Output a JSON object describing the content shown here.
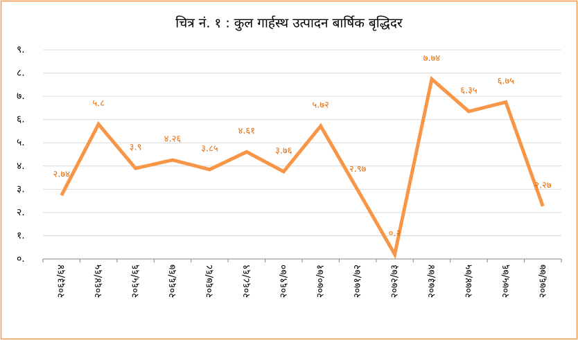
{
  "chart_data": {
    "type": "line",
    "title": "चित्र नं. १ : कुल गार्हस्थ उत्पादन बार्षिक बृद्धिदर",
    "categories": [
      "२०६३/६४",
      "२०६४/६५",
      "२०६५/६६",
      "२०६६/६७",
      "२०६७/६८",
      "२०६८/६९",
      "२०६९/७०",
      "२०७०/७१",
      "२०७१/७२",
      "२०७२/७३",
      "२०७३/७४",
      "२०७४/७५",
      "२०७५/७६",
      "२०७६/७७"
    ],
    "series": [
      {
        "name": "बृद्धिदर",
        "color": "#f79646",
        "values": [
          2.74,
          5.8,
          3.9,
          4.26,
          3.85,
          4.61,
          3.76,
          5.72,
          2.97,
          0.2,
          7.74,
          6.35,
          6.75,
          2.27
        ],
        "value_labels": [
          "२.७४",
          "५.८",
          "३.९",
          "४.२६",
          "३.८५",
          "४.६१",
          "३.७६",
          "५.७२",
          "२.९७",
          "०.२",
          "७.७४",
          "६.३५",
          "६.७५",
          "२.२७"
        ]
      }
    ],
    "ylim": [
      0,
      9
    ],
    "yticks": [
      {
        "value": 0,
        "label": "०."
      },
      {
        "value": 1,
        "label": "१."
      },
      {
        "value": 2,
        "label": "२."
      },
      {
        "value": 3,
        "label": "३."
      },
      {
        "value": 4,
        "label": "४."
      },
      {
        "value": 5,
        "label": "५."
      },
      {
        "value": 6,
        "label": "६."
      },
      {
        "value": 7,
        "label": "७."
      },
      {
        "value": 8,
        "label": "८."
      },
      {
        "value": 9,
        "label": "९."
      }
    ],
    "grid": true
  }
}
